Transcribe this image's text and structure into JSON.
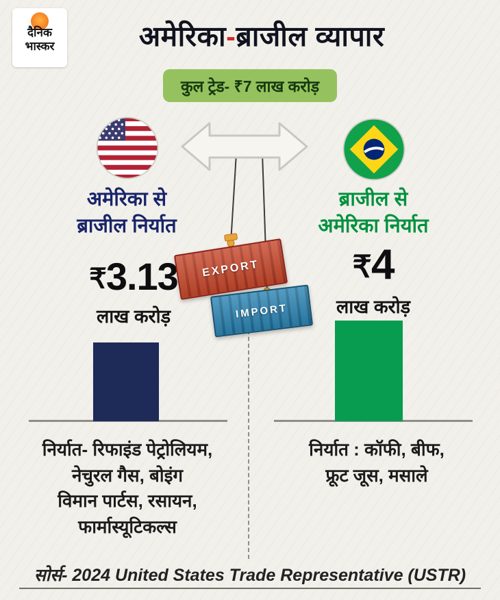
{
  "logo": {
    "line1": "दैनिक",
    "line2": "भास्कर"
  },
  "header": {
    "title_pre": "अमेरिका",
    "title_sep": "-",
    "title_post": "ब्राजील व्यापार",
    "badge": "कुल ट्रेड- ₹7 लाख करोड़"
  },
  "graphic": {
    "export_label": "EXPORT",
    "import_label": "IMPORT"
  },
  "left": {
    "heading": "अमेरिका से\nब्राजील निर्यात",
    "currency": "₹",
    "value": "3.13",
    "unit": "लाख करोड़",
    "description": "निर्यात- रिफाइंड पेट्रोलियम,\nनेचुरल गैस, बोइंग\nविमान पार्टस, रसायन,\nफार्मास्यूटिकल्स"
  },
  "right": {
    "heading": "ब्राजील से\nअमेरिका निर्यात",
    "currency": "₹",
    "value": "4",
    "unit": "लाख करोड़",
    "description": "निर्यात : कॉफी, बीफ,\nफ्रूट जूस, मसाले"
  },
  "footer": {
    "source": "सोर्स- 2024 United States Trade Representative (USTR)"
  },
  "colors": {
    "title": "#10131f",
    "title_hyphen": "#cf2b2b",
    "badge_bg": "#95c25e",
    "badge_text": "#15380e",
    "left_heading": "#17246a",
    "right_heading": "#00913f",
    "export_container": "#b83a23",
    "import_container": "#2478a3"
  },
  "chart_data": {
    "type": "bar",
    "title": "अमेरिका-ब्राजील व्यापार",
    "subtitle": "कुल ट्रेड- ₹7 लाख करोड़",
    "categories": [
      "अमेरिका से ब्राजील निर्यात",
      "ब्राजील से अमेरिका निर्यात"
    ],
    "values": [
      3.13,
      4
    ],
    "value_labels": [
      "₹3.13 लाख करोड़",
      "₹4 लाख करोड़"
    ],
    "unit": "₹ लाख करोड़",
    "total_trade": 7,
    "bar_colors": [
      "#1e2a58",
      "#089c51"
    ],
    "annotations": [
      "निर्यात- रिफाइंड पेट्रोलियम, नेचुरल गैस, बोइंग विमान पार्टस, रसायन, फार्मास्यूटिकल्स",
      "निर्यात : कॉफी, बीफ, फ्रूट जूस, मसाले"
    ],
    "legend": "none",
    "grid": false,
    "source": "सोर्स- 2024 United States Trade Representative (USTR)"
  }
}
